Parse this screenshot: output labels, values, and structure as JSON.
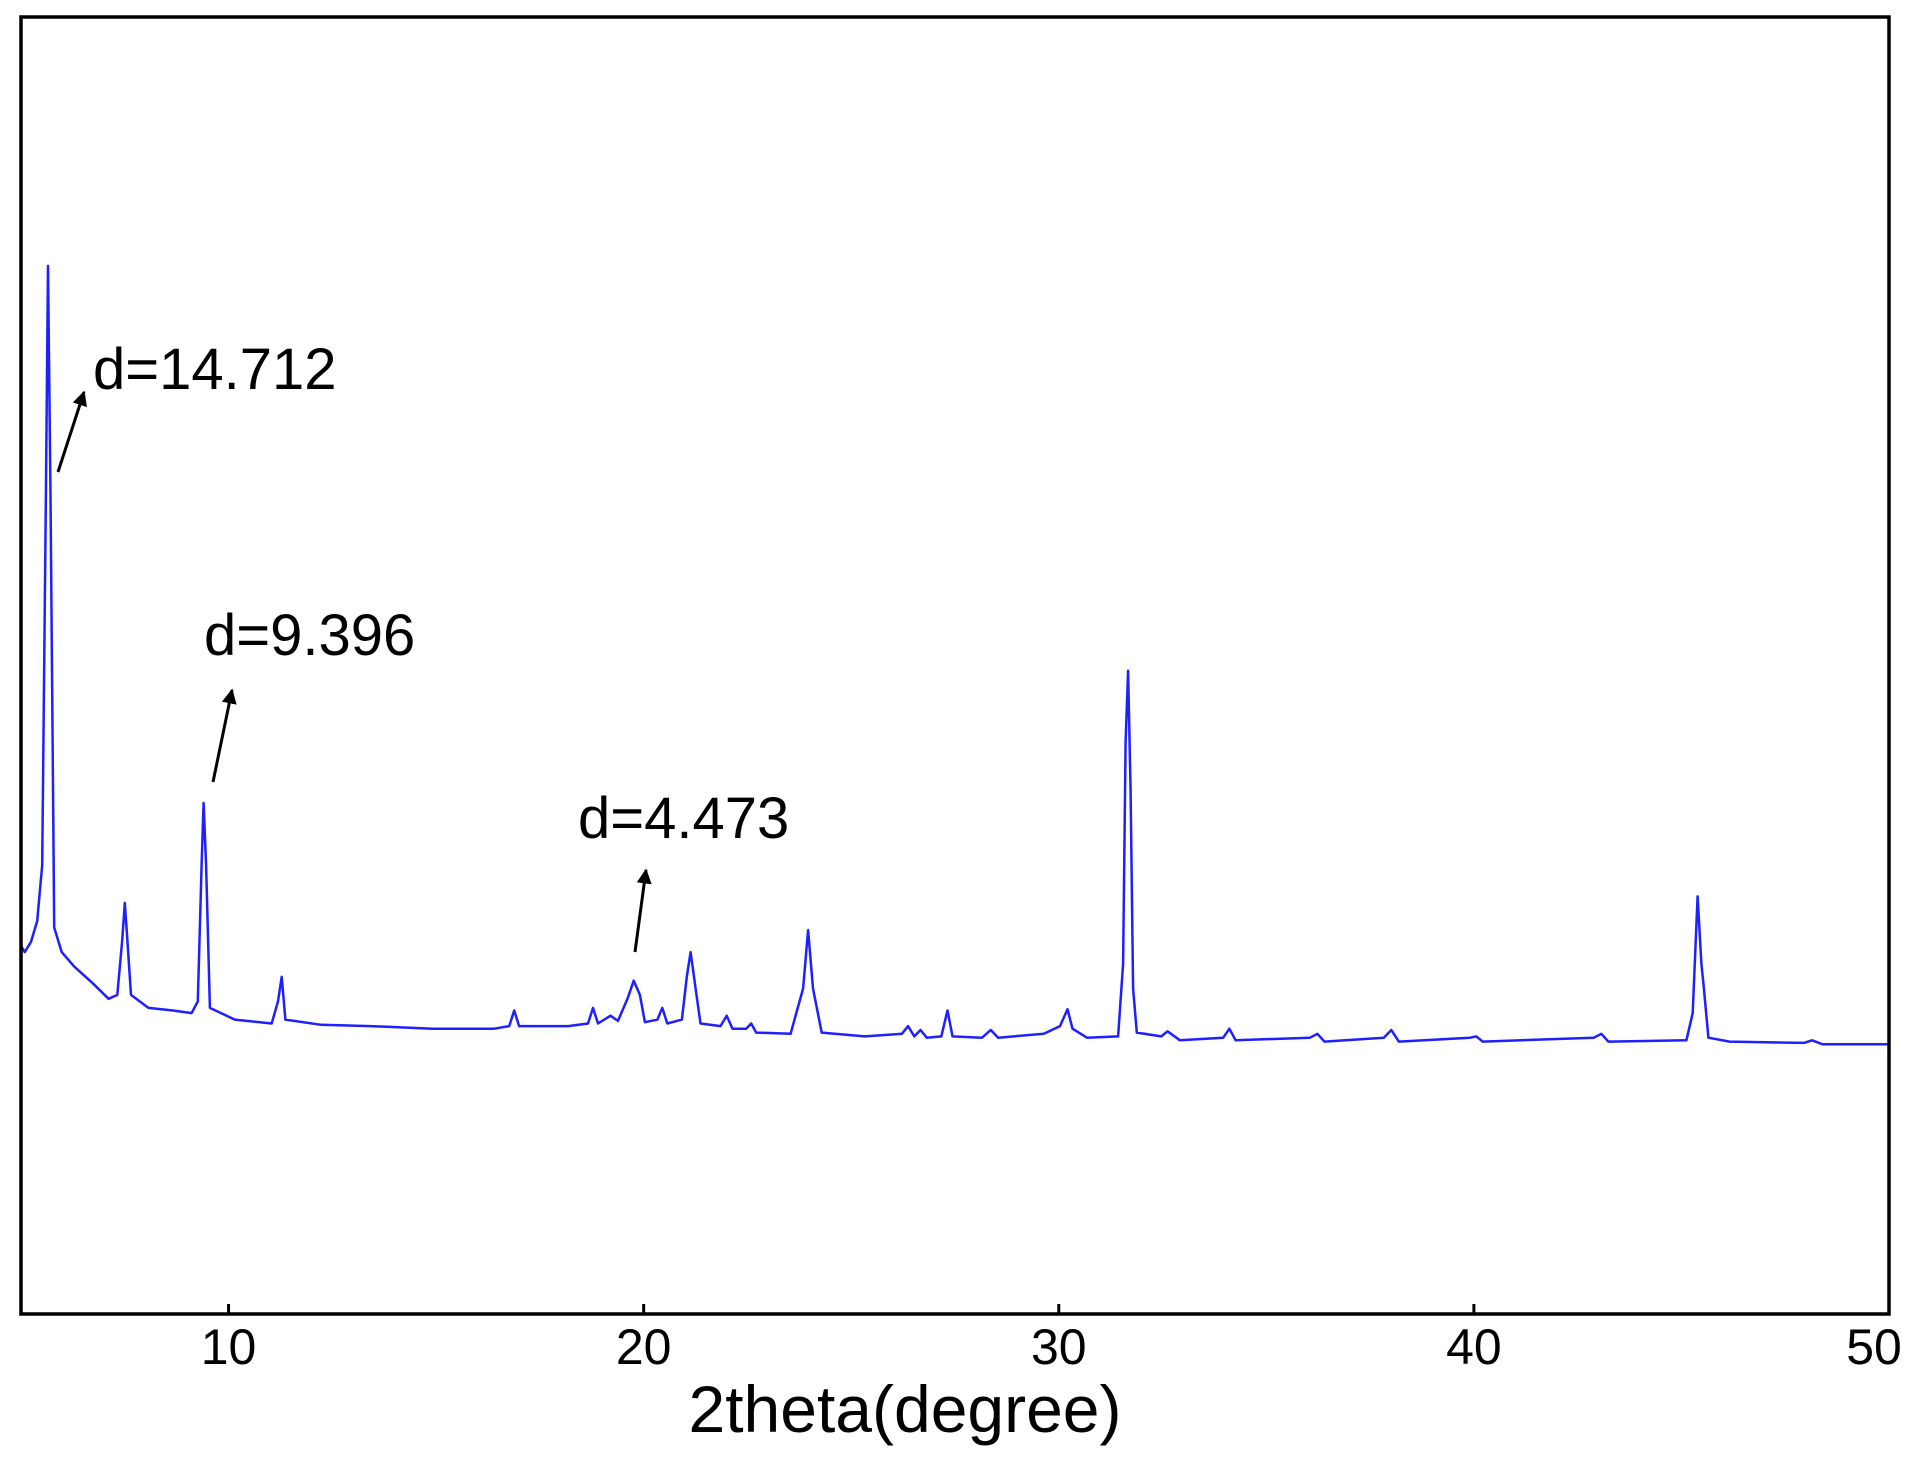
{
  "chart_data": {
    "type": "line",
    "xlabel": "2theta(degree)",
    "color": "#1f1fff",
    "xlim": [
      5,
      50
    ],
    "xticks": [
      10,
      20,
      30,
      40,
      50
    ],
    "ylim": [
      0,
      100
    ],
    "annotations": [
      "d=14.712",
      "d=9.396",
      "d=4.473"
    ],
    "x": [
      5.0,
      5.09,
      5.24,
      5.39,
      5.51,
      5.6,
      5.65,
      5.71,
      5.8,
      5.98,
      6.28,
      6.73,
      7.11,
      7.32,
      7.44,
      7.5,
      7.56,
      7.65,
      8.07,
      8.66,
      9.11,
      9.26,
      9.35,
      9.4,
      9.46,
      9.55,
      10.15,
      11.04,
      11.19,
      11.28,
      11.37,
      12.23,
      13.42,
      14.91,
      16.4,
      16.76,
      16.88,
      17.0,
      18.18,
      18.66,
      18.78,
      18.9,
      19.2,
      19.38,
      19.61,
      19.76,
      19.91,
      20.03,
      20.33,
      20.45,
      20.57,
      20.92,
      21.04,
      21.13,
      21.25,
      21.37,
      21.85,
      22.0,
      22.14,
      22.47,
      22.59,
      22.71,
      23.54,
      23.84,
      23.96,
      24.08,
      24.29,
      25.33,
      26.22,
      26.37,
      26.52,
      26.67,
      26.82,
      27.17,
      27.32,
      27.44,
      28.15,
      28.36,
      28.54,
      29.64,
      30.03,
      30.21,
      30.33,
      30.68,
      31.43,
      31.55,
      31.61,
      31.67,
      31.73,
      31.79,
      31.88,
      32.47,
      32.62,
      32.92,
      33.96,
      34.11,
      34.26,
      36.05,
      36.23,
      36.4,
      37.83,
      38.01,
      38.19,
      39.91,
      40.06,
      40.21,
      42.89,
      43.07,
      43.24,
      45.12,
      45.27,
      45.39,
      45.48,
      45.54,
      45.65,
      46.16,
      47.95,
      48.15,
      48.39,
      49.97
    ],
    "values": [
      28.4,
      27.9,
      28.7,
      30.3,
      34.6,
      63.2,
      80.8,
      63.2,
      29.8,
      27.9,
      26.8,
      25.5,
      24.3,
      24.6,
      28.9,
      31.7,
      28.9,
      24.6,
      23.6,
      23.4,
      23.2,
      24.1,
      34.6,
      39.4,
      34.6,
      23.6,
      22.7,
      22.4,
      24.1,
      26.0,
      22.7,
      22.3,
      22.2,
      22.0,
      22.0,
      22.2,
      23.4,
      22.2,
      22.2,
      22.4,
      23.6,
      22.4,
      23.0,
      22.6,
      24.3,
      25.7,
      24.6,
      22.5,
      22.7,
      23.6,
      22.4,
      22.7,
      26.0,
      27.9,
      25.1,
      22.4,
      22.2,
      23.0,
      22.0,
      22.0,
      22.4,
      21.7,
      21.6,
      25.1,
      29.6,
      25.1,
      21.7,
      21.4,
      21.6,
      22.2,
      21.4,
      21.9,
      21.3,
      21.4,
      23.4,
      21.4,
      21.3,
      21.9,
      21.3,
      21.6,
      22.2,
      23.5,
      22.0,
      21.3,
      21.4,
      27.0,
      44.1,
      49.6,
      40.3,
      25.1,
      21.7,
      21.4,
      21.8,
      21.1,
      21.3,
      22.0,
      21.1,
      21.3,
      21.6,
      21.0,
      21.3,
      21.9,
      21.0,
      21.3,
      21.4,
      21.0,
      21.3,
      21.6,
      21.0,
      21.1,
      23.2,
      32.2,
      27.0,
      25.1,
      21.3,
      21.0,
      20.9,
      21.1,
      20.8,
      20.8
    ]
  }
}
